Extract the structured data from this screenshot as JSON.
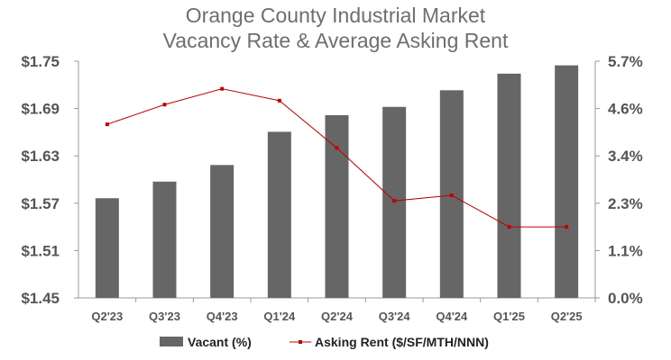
{
  "chart_data": {
    "type": "bar",
    "title": [
      "Orange County Industrial Market",
      "Vacancy Rate & Average Asking Rent"
    ],
    "categories": [
      "Q2'23",
      "Q3'23",
      "Q4'23",
      "Q1'24",
      "Q2'24",
      "Q3'24",
      "Q4'24",
      "Q1'25",
      "Q2'25"
    ],
    "series": [
      {
        "name": "Vacant (%)",
        "type": "bar",
        "axis": "right",
        "color": "#666666",
        "values": [
          2.4,
          2.8,
          3.2,
          4.0,
          4.4,
          4.6,
          5.0,
          5.4,
          5.6
        ]
      },
      {
        "name": "Asking Rent ($/SF/MTH/NNN)",
        "type": "line",
        "axis": "left",
        "color": "#c00000",
        "values": [
          1.67,
          1.695,
          1.715,
          1.7,
          1.64,
          1.573,
          1.58,
          1.54,
          1.54
        ]
      }
    ],
    "left_axis": {
      "ylim": [
        1.45,
        1.75
      ],
      "ticks": [
        "$1.75",
        "$1.69",
        "$1.63",
        "$1.57",
        "$1.51",
        "$1.45"
      ],
      "tick_values": [
        1.75,
        1.69,
        1.63,
        1.57,
        1.51,
        1.45
      ]
    },
    "right_axis": {
      "ylim": [
        0.0,
        5.7
      ],
      "ticks": [
        "5.7%",
        "4.6%",
        "3.4%",
        "2.3%",
        "1.1%",
        "0.0%"
      ],
      "tick_values": [
        5.7,
        4.56,
        3.42,
        2.28,
        1.14,
        0.0
      ]
    },
    "grid": false,
    "legend": "bottom"
  }
}
